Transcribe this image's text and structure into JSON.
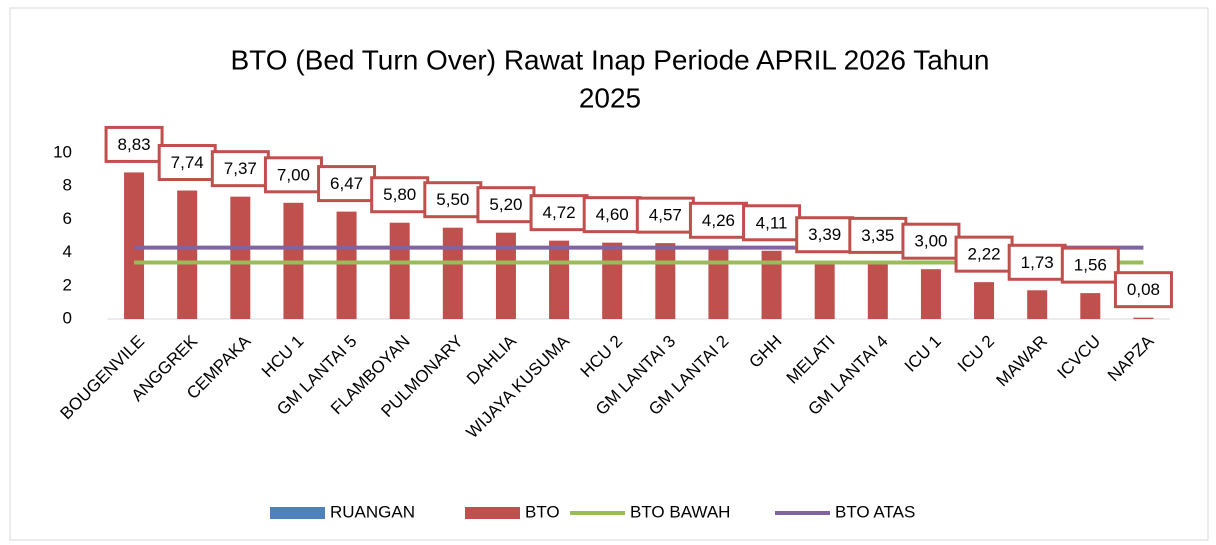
{
  "chart_data": {
    "type": "bar",
    "title": [
      "BTO (Bed Turn Over) Rawat Inap Periode APRIL 2026 Tahun",
      "2025"
    ],
    "categories": [
      "BOUGENVILE",
      "ANGGREK",
      "CEMPAKA",
      "HCU 1",
      "GM LANTAI 5",
      "FLAMBOYAN",
      "PULMONARY",
      "DAHLIA",
      "WIJAYA KUSUMA",
      "HCU 2",
      "GM LANTAI 3",
      "GM LANTAI 2",
      "GHH",
      "MELATI",
      "GM LANTAI 4",
      "ICU 1",
      "ICU 2",
      "MAWAR",
      "ICVCU",
      "NAPZA"
    ],
    "series": [
      {
        "name": "RUANGAN",
        "type": "bar",
        "color": "#4f81bd",
        "values": [
          null,
          null,
          null,
          null,
          null,
          null,
          null,
          null,
          null,
          null,
          null,
          null,
          null,
          null,
          null,
          null,
          null,
          null,
          null,
          null
        ]
      },
      {
        "name": "BTO",
        "type": "bar",
        "color": "#c0504d",
        "values": [
          8.83,
          7.74,
          7.37,
          7.0,
          6.47,
          5.8,
          5.5,
          5.2,
          4.72,
          4.6,
          4.57,
          4.26,
          4.11,
          3.39,
          3.35,
          3.0,
          2.22,
          1.73,
          1.56,
          0.08
        ],
        "value_labels": [
          "8,83",
          "7,74",
          "7,37",
          "7,00",
          "6,47",
          "5,80",
          "5,50",
          "5,20",
          "4,72",
          "4,60",
          "4,57",
          "4,26",
          "4,11",
          "3,39",
          "3,35",
          "3,00",
          "2,22",
          "1,73",
          "1,56",
          "0,08"
        ]
      },
      {
        "name": "BTO BAWAH",
        "type": "line",
        "color": "#9bbb59",
        "values": [
          3.4,
          3.4,
          3.4,
          3.4,
          3.4,
          3.4,
          3.4,
          3.4,
          3.4,
          3.4,
          3.4,
          3.4,
          3.4,
          3.4,
          3.4,
          3.4,
          3.4,
          3.4,
          3.4,
          3.4
        ]
      },
      {
        "name": "BTO ATAS",
        "type": "line",
        "color": "#8064a2",
        "values": [
          4.3,
          4.3,
          4.3,
          4.3,
          4.3,
          4.3,
          4.3,
          4.3,
          4.3,
          4.3,
          4.3,
          4.3,
          4.3,
          4.3,
          4.3,
          4.3,
          4.3,
          4.3,
          4.3,
          4.3
        ]
      }
    ],
    "ylim": [
      0,
      10
    ],
    "yticks": [
      0,
      2,
      4,
      6,
      8,
      10
    ]
  }
}
